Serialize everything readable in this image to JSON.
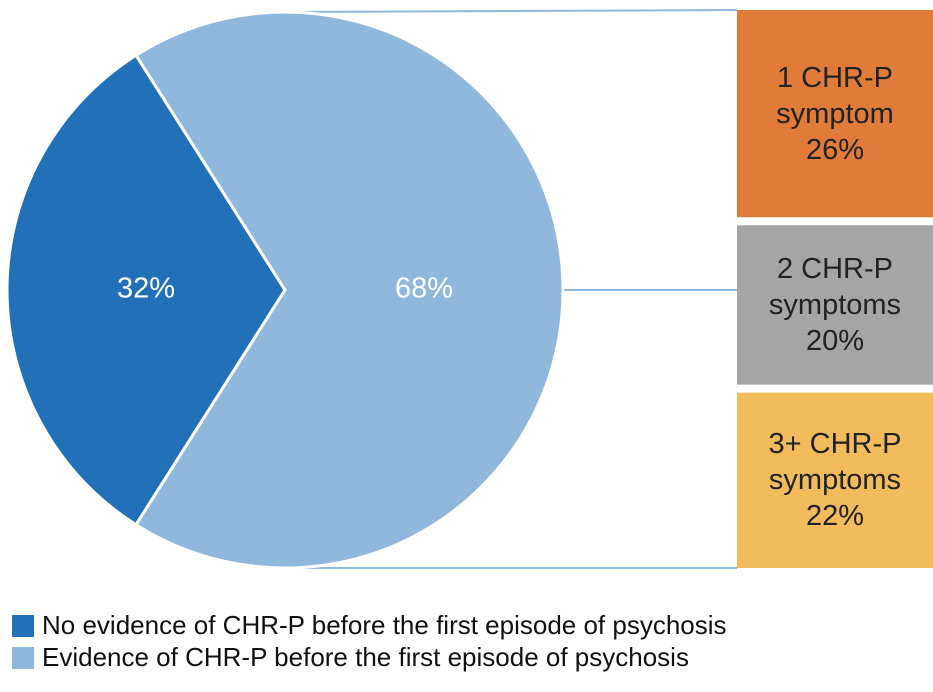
{
  "chart_data": [
    {
      "type": "pie",
      "categories": [
        "No evidence of CHR-P before the first episode of psychosis",
        "Evidence of CHR-P before the first episode of psychosis"
      ],
      "values": [
        32,
        68
      ],
      "value_labels": [
        "32%",
        "68%"
      ],
      "colors": [
        "#2271b8",
        "#8fb8dc"
      ],
      "legend": "bottom"
    },
    {
      "type": "bar",
      "categories": [
        "1 CHR-P symptom",
        "2 CHR-P symptoms",
        "3+ CHR-P symptoms"
      ],
      "values": [
        26,
        20,
        22
      ],
      "value_labels": [
        "26%",
        "20%",
        "22%"
      ],
      "colors": [
        "#e07b39",
        "#a5a5a5",
        "#f2bc5c"
      ]
    }
  ]
}
